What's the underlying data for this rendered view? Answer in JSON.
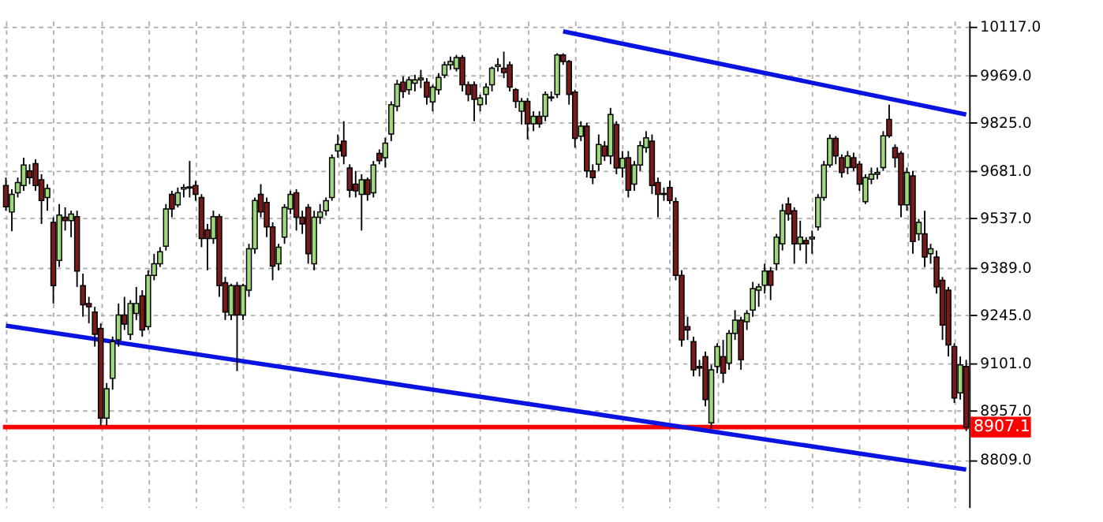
{
  "chart_data": {
    "type": "candlestick",
    "categories": [
      null,
      null,
      null,
      null,
      null,
      null,
      null,
      null,
      null,
      null,
      null,
      null,
      null,
      null,
      null,
      null,
      null,
      null,
      null,
      null,
      null,
      null,
      null,
      null,
      null,
      null,
      null,
      null,
      null,
      null,
      null,
      null,
      null,
      null,
      null,
      null,
      null,
      null,
      null,
      null,
      null,
      null,
      null,
      null,
      null,
      null,
      null,
      null,
      null,
      null,
      null,
      null,
      null,
      null,
      null,
      null,
      null,
      null,
      null,
      null,
      null,
      null,
      null,
      null,
      null,
      null,
      null,
      null,
      null,
      null,
      null,
      null,
      null,
      null,
      null,
      null,
      null,
      null,
      null,
      null,
      null,
      null,
      null,
      null,
      null,
      null,
      null,
      null,
      null,
      null,
      null,
      null,
      null,
      null,
      null,
      null,
      null,
      null,
      null,
      null,
      null,
      null,
      null,
      null,
      null,
      null,
      null,
      null,
      null,
      null,
      null,
      null,
      null,
      null,
      null,
      null,
      null,
      null,
      null,
      null,
      null,
      null,
      null,
      null,
      null,
      null,
      null,
      null,
      null,
      null,
      null,
      null,
      null,
      null,
      null,
      null,
      null,
      null,
      null,
      null,
      null,
      null,
      null,
      null,
      null,
      null,
      null,
      null,
      null,
      null,
      null,
      null,
      null,
      null,
      null,
      null,
      null,
      null,
      null,
      null,
      null,
      null,
      null
    ],
    "ohlc": [
      [
        9636,
        9660,
        9560,
        9572
      ],
      [
        9556,
        9625,
        9498,
        9609
      ],
      [
        9614,
        9660,
        9600,
        9645
      ],
      [
        9636,
        9720,
        9620,
        9698
      ],
      [
        9680,
        9700,
        9640,
        9660
      ],
      [
        9702,
        9715,
        9620,
        9636
      ],
      [
        9653,
        9670,
        9520,
        9591
      ],
      [
        9600,
        9640,
        9560,
        9627
      ],
      [
        9525,
        9540,
        9280,
        9334
      ],
      [
        9410,
        9580,
        9390,
        9547
      ],
      [
        9540,
        9570,
        9500,
        9530
      ],
      [
        9530,
        9560,
        9480,
        9550
      ],
      [
        9542,
        9560,
        9330,
        9378
      ],
      [
        9334,
        9370,
        9240,
        9276
      ],
      [
        9280,
        9300,
        9220,
        9270
      ],
      [
        9254,
        9270,
        9150,
        9187
      ],
      [
        9205,
        9220,
        8910,
        8934
      ],
      [
        8934,
        9040,
        8912,
        9023
      ],
      [
        9054,
        9180,
        9020,
        9165
      ],
      [
        9170,
        9280,
        9150,
        9245
      ],
      [
        9245,
        9300,
        9200,
        9218
      ],
      [
        9187,
        9290,
        9170,
        9280
      ],
      [
        9250,
        9330,
        9230,
        9280
      ],
      [
        9303,
        9320,
        9180,
        9200
      ],
      [
        9210,
        9380,
        9200,
        9365
      ],
      [
        9365,
        9430,
        9350,
        9400
      ],
      [
        9400,
        9450,
        9390,
        9436
      ],
      [
        9453,
        9580,
        9440,
        9565
      ],
      [
        9609,
        9620,
        9540,
        9565
      ],
      [
        9578,
        9630,
        9570,
        9614
      ],
      [
        9625,
        9640,
        9600,
        9630
      ],
      [
        9628,
        9710,
        9600,
        9632
      ],
      [
        9636,
        9650,
        9590,
        9609
      ],
      [
        9600,
        9610,
        9450,
        9476
      ],
      [
        9502,
        9520,
        9380,
        9476
      ],
      [
        9476,
        9560,
        9460,
        9542
      ],
      [
        9542,
        9550,
        9300,
        9334
      ],
      [
        9343,
        9360,
        9230,
        9254
      ],
      [
        9245,
        9340,
        9230,
        9334
      ],
      [
        9334,
        9345,
        9076,
        9245
      ],
      [
        9245,
        9340,
        9230,
        9334
      ],
      [
        9320,
        9460,
        9300,
        9445
      ],
      [
        9445,
        9600,
        9430,
        9591
      ],
      [
        9609,
        9640,
        9540,
        9556
      ],
      [
        9585,
        9600,
        9480,
        9511
      ],
      [
        9511,
        9525,
        9350,
        9393
      ],
      [
        9400,
        9460,
        9380,
        9450
      ],
      [
        9480,
        9580,
        9460,
        9570
      ],
      [
        9565,
        9620,
        9550,
        9609
      ],
      [
        9614,
        9625,
        9500,
        9540
      ],
      [
        9540,
        9560,
        9490,
        9520
      ],
      [
        9570,
        9580,
        9400,
        9430
      ],
      [
        9400,
        9560,
        9380,
        9540
      ],
      [
        9540,
        9580,
        9520,
        9556
      ],
      [
        9560,
        9600,
        9545,
        9590
      ],
      [
        9600,
        9730,
        9590,
        9720
      ],
      [
        9740,
        9790,
        9720,
        9760
      ],
      [
        9770,
        9830,
        9700,
        9725
      ],
      [
        9689,
        9700,
        9600,
        9622
      ],
      [
        9640,
        9680,
        9600,
        9620
      ],
      [
        9609,
        9670,
        9500,
        9653
      ],
      [
        9653,
        9660,
        9590,
        9609
      ],
      [
        9614,
        9710,
        9600,
        9698
      ],
      [
        9733,
        9745,
        9700,
        9711
      ],
      [
        9720,
        9780,
        9690,
        9764
      ],
      [
        9791,
        9890,
        9770,
        9880
      ],
      [
        9875,
        9955,
        9860,
        9942
      ],
      [
        9948,
        9965,
        9900,
        9920
      ],
      [
        9925,
        9965,
        9910,
        9955
      ],
      [
        9945,
        9970,
        9920,
        9955
      ],
      [
        9955,
        9985,
        9930,
        9960
      ],
      [
        9948,
        9960,
        9880,
        9903
      ],
      [
        9888,
        9940,
        9860,
        9933
      ],
      [
        9925,
        9975,
        9910,
        9962
      ],
      [
        9969,
        10010,
        9960,
        10000
      ],
      [
        10000,
        10025,
        9985,
        10010
      ],
      [
        9989,
        10030,
        9980,
        10022
      ],
      [
        10022,
        10030,
        9920,
        9940
      ],
      [
        9940,
        9950,
        9890,
        9911
      ],
      [
        9940,
        9950,
        9830,
        9896
      ],
      [
        9880,
        9910,
        9860,
        9900
      ],
      [
        9911,
        9945,
        9880,
        9933
      ],
      [
        9940,
        9995,
        9920,
        9990
      ],
      [
        9995,
        10020,
        9980,
        10000
      ],
      [
        9990,
        10040,
        9960,
        9977
      ],
      [
        10000,
        10010,
        9920,
        9933
      ],
      [
        9925,
        9930,
        9870,
        9890
      ],
      [
        9860,
        9900,
        9820,
        9890
      ],
      [
        9890,
        9900,
        9775,
        9822
      ],
      [
        9822,
        9860,
        9800,
        9845
      ],
      [
        9845,
        9860,
        9810,
        9822
      ],
      [
        9845,
        9920,
        9830,
        9911
      ],
      [
        9900,
        9920,
        9890,
        9903
      ],
      [
        9911,
        10035,
        9900,
        10030
      ],
      [
        10030,
        10035,
        10000,
        10010
      ],
      [
        10010,
        10015,
        9880,
        9911
      ],
      [
        9918,
        9925,
        9750,
        9778
      ],
      [
        9785,
        9830,
        9770,
        9815
      ],
      [
        9815,
        9825,
        9660,
        9680
      ],
      [
        9680,
        9700,
        9640,
        9660
      ],
      [
        9700,
        9790,
        9680,
        9760
      ],
      [
        9755,
        9770,
        9710,
        9725
      ],
      [
        9725,
        9870,
        9700,
        9850
      ],
      [
        9820,
        9830,
        9670,
        9689
      ],
      [
        9689,
        9740,
        9660,
        9718
      ],
      [
        9720,
        9740,
        9600,
        9622
      ],
      [
        9640,
        9710,
        9620,
        9698
      ],
      [
        9698,
        9770,
        9680,
        9756
      ],
      [
        9750,
        9800,
        9735,
        9780
      ],
      [
        9770,
        9790,
        9610,
        9636
      ],
      [
        9645,
        9660,
        9540,
        9609
      ],
      [
        9609,
        9630,
        9590,
        9612
      ],
      [
        9630,
        9650,
        9580,
        9591
      ],
      [
        9587,
        9600,
        9350,
        9365
      ],
      [
        9365,
        9380,
        9150,
        9170
      ],
      [
        9210,
        9240,
        9170,
        9200
      ],
      [
        9165,
        9180,
        9060,
        9080
      ],
      [
        9090,
        9110,
        9060,
        9085
      ],
      [
        9120,
        9135,
        8970,
        8990
      ],
      [
        8920,
        9095,
        8903,
        9080
      ],
      [
        9090,
        9160,
        9070,
        9150
      ],
      [
        9120,
        9170,
        9040,
        9070
      ],
      [
        9100,
        9200,
        9080,
        9190
      ],
      [
        9190,
        9260,
        9170,
        9230
      ],
      [
        9230,
        9240,
        9080,
        9110
      ],
      [
        9225,
        9260,
        9200,
        9250
      ],
      [
        9260,
        9345,
        9240,
        9325
      ],
      [
        9320,
        9340,
        9270,
        9330
      ],
      [
        9335,
        9400,
        9310,
        9378
      ],
      [
        9378,
        9390,
        9290,
        9335
      ],
      [
        9400,
        9490,
        9380,
        9480
      ],
      [
        9460,
        9580,
        9440,
        9560
      ],
      [
        9580,
        9600,
        9530,
        9550
      ],
      [
        9560,
        9570,
        9400,
        9460
      ],
      [
        9460,
        9530,
        9440,
        9480
      ],
      [
        9470,
        9480,
        9400,
        9460
      ],
      [
        9475,
        9500,
        9430,
        9480
      ],
      [
        9511,
        9610,
        9500,
        9600
      ],
      [
        9600,
        9710,
        9590,
        9698
      ],
      [
        9698,
        9790,
        9690,
        9778
      ],
      [
        9778,
        9785,
        9700,
        9725
      ],
      [
        9720,
        9730,
        9660,
        9675
      ],
      [
        9690,
        9740,
        9670,
        9725
      ],
      [
        9720,
        9735,
        9680,
        9690
      ],
      [
        9700,
        9710,
        9620,
        9640
      ],
      [
        9587,
        9670,
        9580,
        9660
      ],
      [
        9655,
        9690,
        9640,
        9670
      ],
      [
        9670,
        9690,
        9655,
        9675
      ],
      [
        9690,
        9800,
        9680,
        9786
      ],
      [
        9835,
        9880,
        9780,
        9786
      ],
      [
        9750,
        9760,
        9690,
        9720
      ],
      [
        9733,
        9740,
        9540,
        9578
      ],
      [
        9578,
        9690,
        9560,
        9675
      ],
      [
        9665,
        9680,
        9430,
        9467
      ],
      [
        9490,
        9535,
        9470,
        9525
      ],
      [
        9490,
        9560,
        9390,
        9420
      ],
      [
        9430,
        9460,
        9400,
        9445
      ],
      [
        9420,
        9440,
        9310,
        9330
      ],
      [
        9350,
        9360,
        9170,
        9215
      ],
      [
        9320,
        9330,
        9120,
        9155
      ],
      [
        9150,
        9160,
        8980,
        8995
      ],
      [
        9010,
        9120,
        8990,
        9095
      ],
      [
        9090,
        9110,
        8895,
        8907
      ]
    ],
    "colors": [
      "#7a1a1a",
      "#9fd87a",
      "#9fd87a",
      "#9fd87a",
      "#7a1a1a",
      "#7a1a1a",
      "#7a1a1a",
      "#9fd87a",
      "#7a1a1a",
      "#9fd87a",
      "#7a1a1a",
      "#9fd87a",
      "#7a1a1a",
      "#7a1a1a",
      "#7a1a1a",
      "#7a1a1a",
      "#7a1a1a",
      "#9fd87a",
      "#9fd87a",
      "#9fd87a",
      "#7a1a1a",
      "#9fd87a",
      "#9fd87a",
      "#7a1a1a",
      "#9fd87a",
      "#9fd87a",
      "#9fd87a",
      "#9fd87a",
      "#7a1a1a",
      "#9fd87a",
      "#9fd87a",
      "#9fd87a",
      "#7a1a1a",
      "#7a1a1a",
      "#7a1a1a",
      "#9fd87a",
      "#7a1a1a",
      "#7a1a1a",
      "#9fd87a",
      "#7a1a1a",
      "#9fd87a",
      "#9fd87a",
      "#9fd87a",
      "#7a1a1a",
      "#7a1a1a",
      "#7a1a1a",
      "#9fd87a",
      "#9fd87a",
      "#9fd87a",
      "#7a1a1a",
      "#7a1a1a",
      "#7a1a1a",
      "#9fd87a",
      "#9fd87a",
      "#9fd87a",
      "#9fd87a",
      "#9fd87a",
      "#7a1a1a",
      "#7a1a1a",
      "#7a1a1a",
      "#9fd87a",
      "#7a1a1a",
      "#9fd87a",
      "#7a1a1a",
      "#9fd87a",
      "#9fd87a",
      "#9fd87a",
      "#7a1a1a",
      "#9fd87a",
      "#9fd87a",
      "#9fd87a",
      "#7a1a1a",
      "#9fd87a",
      "#9fd87a",
      "#9fd87a",
      "#9fd87a",
      "#9fd87a",
      "#7a1a1a",
      "#7a1a1a",
      "#7a1a1a",
      "#9fd87a",
      "#9fd87a",
      "#9fd87a",
      "#9fd87a",
      "#7a1a1a",
      "#7a1a1a",
      "#7a1a1a",
      "#9fd87a",
      "#7a1a1a",
      "#9fd87a",
      "#7a1a1a",
      "#9fd87a",
      "#9fd87a",
      "#9fd87a",
      "#7a1a1a",
      "#7a1a1a",
      "#7a1a1a",
      "#9fd87a",
      "#7a1a1a",
      "#7a1a1a",
      "#9fd87a",
      "#7a1a1a",
      "#9fd87a",
      "#7a1a1a",
      "#9fd87a",
      "#7a1a1a",
      "#9fd87a",
      "#9fd87a",
      "#9fd87a",
      "#7a1a1a",
      "#7a1a1a",
      "#9fd87a",
      "#7a1a1a",
      "#7a1a1a",
      "#7a1a1a",
      "#7a1a1a",
      "#7a1a1a",
      "#7a1a1a",
      "#7a1a1a",
      "#9fd87a",
      "#9fd87a",
      "#7a1a1a",
      "#9fd87a",
      "#9fd87a",
      "#7a1a1a",
      "#9fd87a",
      "#9fd87a",
      "#9fd87a",
      "#9fd87a",
      "#7a1a1a",
      "#9fd87a",
      "#9fd87a",
      "#7a1a1a",
      "#7a1a1a",
      "#9fd87a",
      "#7a1a1a",
      "#9fd87a",
      "#9fd87a",
      "#9fd87a",
      "#9fd87a",
      "#7a1a1a",
      "#7a1a1a",
      "#9fd87a",
      "#7a1a1a",
      "#7a1a1a",
      "#9fd87a",
      "#9fd87a",
      "#9fd87a",
      "#9fd87a",
      "#7a1a1a",
      "#7a1a1a",
      "#7a1a1a",
      "#9fd87a",
      "#7a1a1a",
      "#9fd87a",
      "#7a1a1a",
      "#9fd87a",
      "#7a1a1a",
      "#7a1a1a",
      "#7a1a1a",
      "#7a1a1a",
      "#9fd87a",
      "#7a1a1a"
    ],
    "series": [
      {
        "type": "line",
        "color": "#0a14e0",
        "values": [
          null,
          null,
          null,
          null,
          null,
          null,
          null,
          null,
          null,
          null,
          null,
          null,
          null,
          null,
          null,
          null,
          null,
          null,
          null,
          null,
          null,
          null,
          null,
          null,
          null,
          null,
          null,
          null,
          null,
          null,
          null,
          null,
          null,
          null,
          null,
          null,
          null,
          null,
          null,
          null,
          null,
          null,
          null,
          null,
          null,
          null,
          null,
          null,
          null,
          null,
          null,
          null,
          null,
          null,
          null,
          null,
          null,
          null,
          null,
          null,
          null,
          null,
          null,
          null,
          null,
          null,
          null,
          null,
          null,
          null,
          null,
          null,
          null,
          null,
          null,
          null,
          null,
          null,
          null,
          null,
          null,
          null,
          null,
          null,
          null,
          null,
          null,
          null,
          null,
          null,
          null,
          null,
          null,
          null,
          10101,
          null,
          null,
          null,
          null,
          null,
          null,
          null,
          null,
          null,
          null,
          null,
          null,
          null,
          null,
          null,
          null,
          null,
          null,
          null,
          null,
          null,
          null,
          null,
          null,
          null,
          null,
          null,
          null,
          null,
          null,
          null,
          null,
          null,
          null,
          null,
          null,
          null,
          null,
          null,
          null,
          null,
          null,
          null,
          null,
          null,
          null,
          null,
          null,
          null,
          null,
          null,
          null,
          null,
          null,
          null,
          null,
          null,
          null,
          null,
          null,
          null,
          null,
          null,
          null,
          null,
          null,
          null,
          9850
        ]
      },
      {
        "type": "line",
        "color": "#0a14e0",
        "values": [
          9213,
          null,
          null,
          null,
          null,
          null,
          null,
          null,
          null,
          null,
          null,
          null,
          null,
          null,
          null,
          null,
          null,
          null,
          null,
          null,
          null,
          null,
          null,
          null,
          null,
          null,
          null,
          null,
          null,
          null,
          null,
          null,
          null,
          null,
          null,
          null,
          null,
          null,
          null,
          null,
          null,
          null,
          null,
          null,
          null,
          null,
          null,
          null,
          null,
          null,
          null,
          null,
          null,
          null,
          null,
          null,
          null,
          null,
          null,
          null,
          null,
          null,
          null,
          null,
          null,
          null,
          null,
          null,
          null,
          null,
          null,
          null,
          null,
          null,
          null,
          null,
          null,
          null,
          null,
          null,
          null,
          null,
          null,
          null,
          null,
          null,
          null,
          null,
          null,
          null,
          null,
          null,
          null,
          null,
          null,
          null,
          null,
          null,
          null,
          null,
          null,
          null,
          null,
          null,
          null,
          null,
          null,
          null,
          null,
          null,
          null,
          null,
          null,
          null,
          null,
          null,
          null,
          null,
          null,
          null,
          null,
          null,
          null,
          null,
          null,
          null,
          null,
          null,
          null,
          null,
          null,
          null,
          null,
          null,
          null,
          null,
          null,
          null,
          null,
          null,
          null,
          null,
          null,
          null,
          null,
          null,
          null,
          null,
          null,
          null,
          null,
          null,
          null,
          null,
          null,
          null,
          null,
          null,
          null,
          null,
          null,
          null,
          8779
        ]
      }
    ],
    "ylim": [
      8665,
      10133
    ],
    "yticks": [
      {
        "value": 10117,
        "label": "10117.0"
      },
      {
        "value": 9969,
        "label": "9969.0"
      },
      {
        "value": 9825,
        "label": "9825.0"
      },
      {
        "value": 9681,
        "label": "9681.0"
      },
      {
        "value": 9537,
        "label": "9537.0"
      },
      {
        "value": 9389,
        "label": "9389.0"
      },
      {
        "value": 9245,
        "label": "9245.0"
      },
      {
        "value": 9101,
        "label": "9101.0"
      },
      {
        "value": 8957,
        "label": "8957.0"
      },
      {
        "value": 8809,
        "label": "8809.0"
      }
    ],
    "ref_lines": [
      {
        "axis": "y",
        "value": 8907.1,
        "label": "8907.1",
        "color": "#ff0000"
      }
    ],
    "grid": true,
    "tick_labels": "y"
  }
}
